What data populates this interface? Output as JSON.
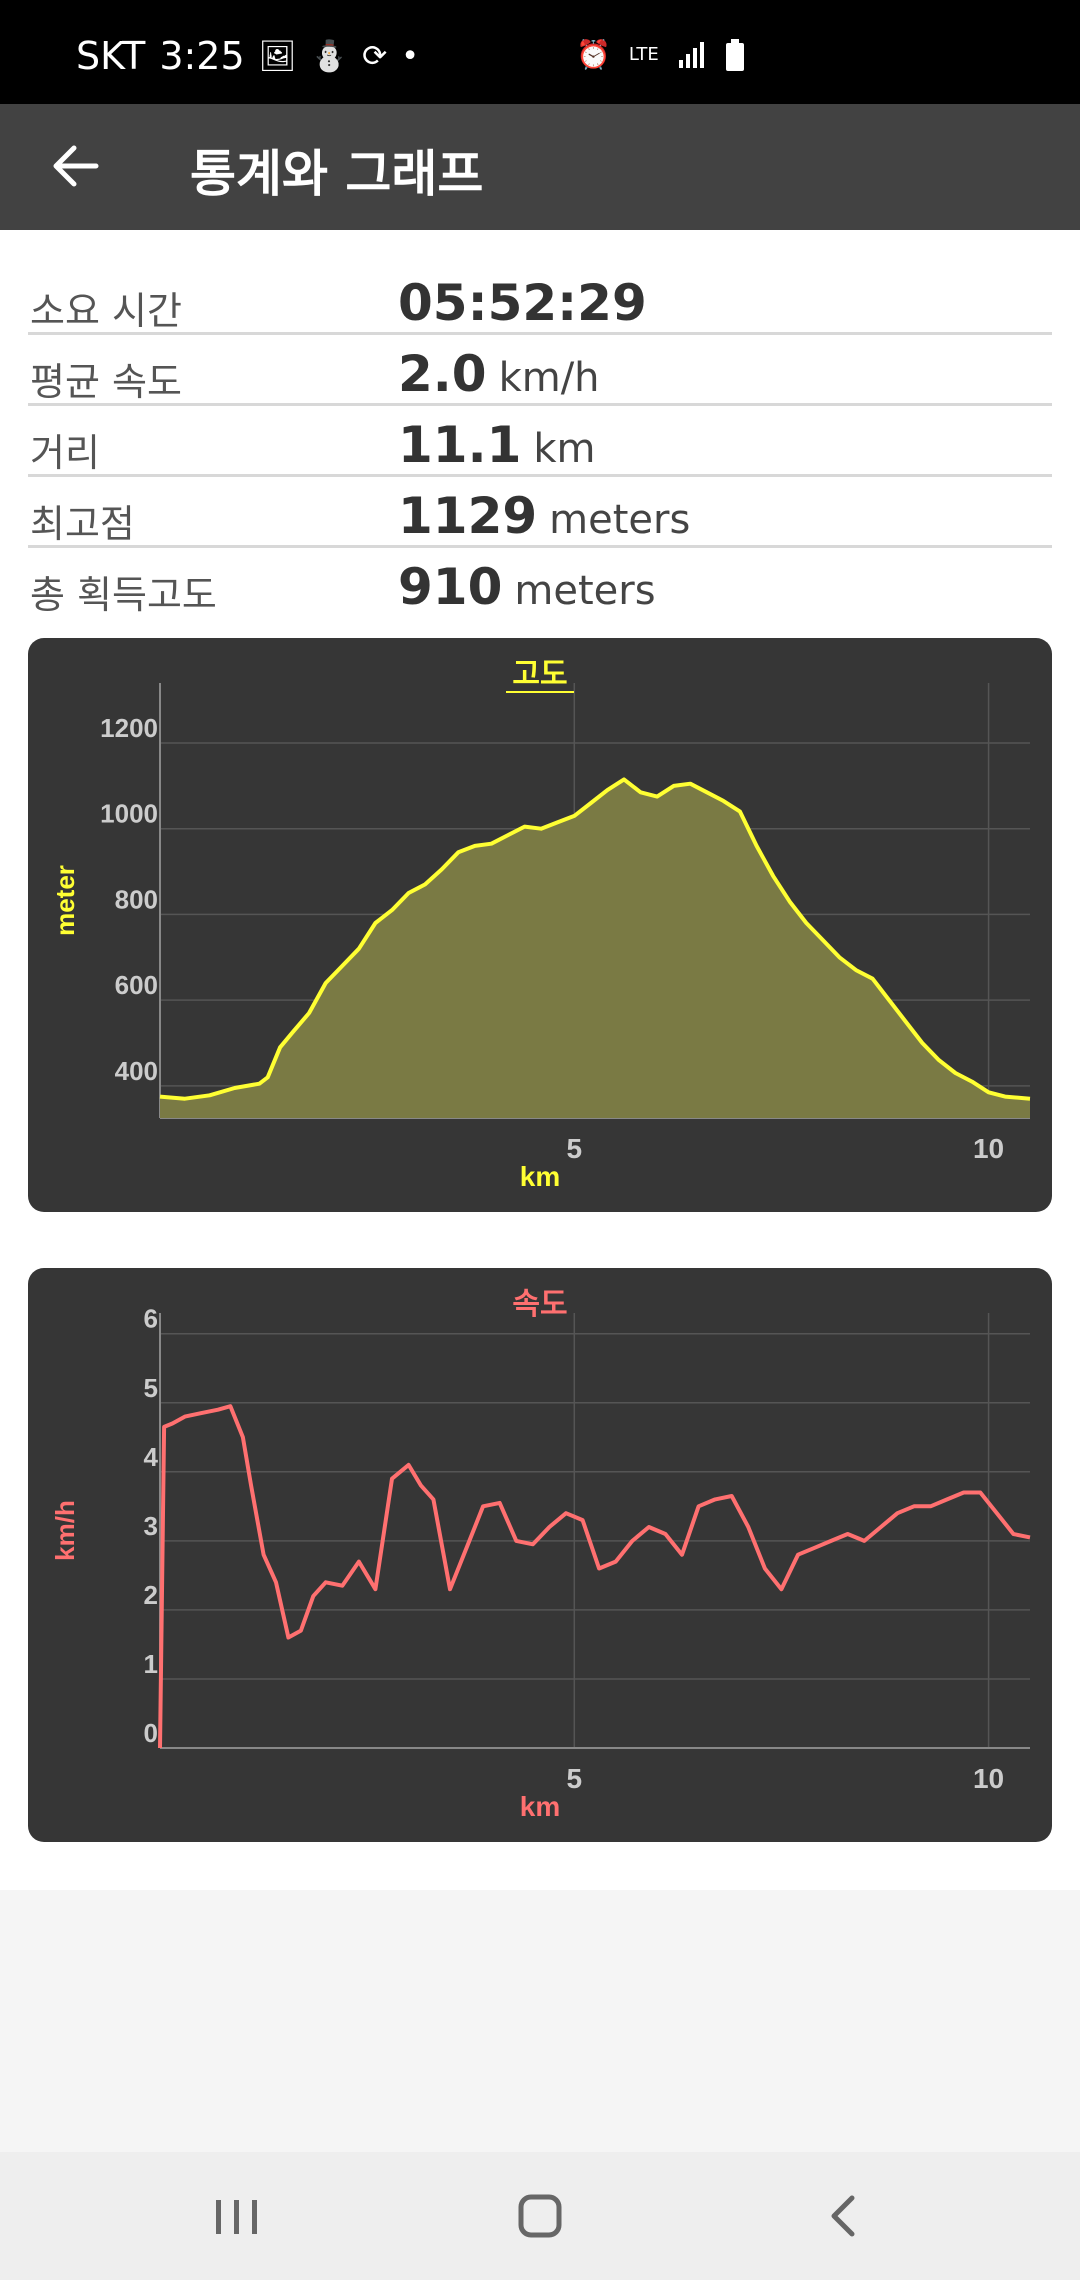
{
  "status_bar": {
    "carrier": "SKT",
    "time": "3:25",
    "network": "LTE",
    "left_icons": [
      "image-icon",
      "notification-icon",
      "sync-icon",
      "dot-icon"
    ],
    "right_icons": [
      "alarm-icon",
      "lte-icon",
      "signal-icon",
      "battery-icon"
    ]
  },
  "app_bar": {
    "title": "통계와 그래프",
    "back_icon": "arrow-left-icon"
  },
  "stats": [
    {
      "label": "소요 시간",
      "value": "05:52:29",
      "unit": ""
    },
    {
      "label": "평균 속도",
      "value": "2.0",
      "unit": "km/h"
    },
    {
      "label": "거리",
      "value": "11.1",
      "unit": "km"
    },
    {
      "label": "최고점",
      "value": "1129",
      "unit": "meters"
    },
    {
      "label": "총 획득고도",
      "value": "910",
      "unit": "meters"
    }
  ],
  "chart_data": [
    {
      "type": "area",
      "title": "고도",
      "xlabel": "km",
      "ylabel": "meter",
      "color": "#ffff33",
      "fill": "#7a7a44",
      "xlim": [
        0,
        10.5
      ],
      "ylim": [
        325,
        1340
      ],
      "xticks": [
        5,
        10
      ],
      "yticks": [
        400,
        600,
        800,
        1000,
        1200
      ],
      "grid": true,
      "x": [
        0,
        0.3,
        0.6,
        0.9,
        1.2,
        1.3,
        1.45,
        1.6,
        1.8,
        2.0,
        2.2,
        2.4,
        2.6,
        2.8,
        3.0,
        3.2,
        3.4,
        3.6,
        3.8,
        4.0,
        4.2,
        4.4,
        4.6,
        4.8,
        5.0,
        5.2,
        5.4,
        5.6,
        5.8,
        6.0,
        6.2,
        6.4,
        6.6,
        6.8,
        7.0,
        7.2,
        7.4,
        7.6,
        7.8,
        8.0,
        8.2,
        8.4,
        8.6,
        8.8,
        9.0,
        9.2,
        9.4,
        9.6,
        9.8,
        10.0,
        10.2,
        10.5
      ],
      "y": [
        375,
        370,
        378,
        395,
        405,
        420,
        490,
        525,
        570,
        640,
        680,
        720,
        780,
        810,
        850,
        870,
        905,
        945,
        960,
        965,
        985,
        1005,
        1000,
        1015,
        1030,
        1060,
        1090,
        1115,
        1085,
        1075,
        1100,
        1105,
        1085,
        1065,
        1040,
        960,
        890,
        830,
        780,
        740,
        700,
        670,
        650,
        600,
        550,
        500,
        460,
        430,
        410,
        385,
        375,
        370
      ]
    },
    {
      "type": "line",
      "title": "속도",
      "xlabel": "km",
      "ylabel": "km/h",
      "color": "#ff7070",
      "xlim": [
        0,
        10.5
      ],
      "ylim": [
        0,
        6.3
      ],
      "xticks": [
        5,
        10
      ],
      "yticks": [
        0,
        1,
        2,
        3,
        4,
        5,
        6
      ],
      "grid": true,
      "x": [
        0,
        0.05,
        0.15,
        0.3,
        0.5,
        0.7,
        0.85,
        1.0,
        1.1,
        1.25,
        1.4,
        1.55,
        1.7,
        1.85,
        2.0,
        2.2,
        2.4,
        2.6,
        2.8,
        3.0,
        3.15,
        3.3,
        3.5,
        3.7,
        3.9,
        4.1,
        4.3,
        4.5,
        4.7,
        4.9,
        5.1,
        5.3,
        5.5,
        5.7,
        5.9,
        6.1,
        6.3,
        6.5,
        6.7,
        6.9,
        7.1,
        7.3,
        7.5,
        7.7,
        7.9,
        8.1,
        8.3,
        8.5,
        8.7,
        8.9,
        9.1,
        9.3,
        9.5,
        9.7,
        9.9,
        10.1,
        10.3,
        10.5
      ],
      "y": [
        0,
        4.65,
        4.7,
        4.8,
        4.85,
        4.9,
        4.95,
        4.5,
        3.8,
        2.8,
        2.4,
        1.6,
        1.7,
        2.2,
        2.4,
        2.35,
        2.7,
        2.3,
        3.9,
        4.1,
        3.8,
        3.6,
        2.3,
        2.9,
        3.5,
        3.55,
        3.0,
        2.95,
        3.2,
        3.4,
        3.3,
        2.6,
        2.7,
        3.0,
        3.2,
        3.1,
        2.8,
        3.5,
        3.6,
        3.65,
        3.2,
        2.6,
        2.3,
        2.8,
        2.9,
        3.0,
        3.1,
        3.0,
        3.2,
        3.4,
        3.5,
        3.5,
        3.6,
        3.7,
        3.7,
        3.4,
        3.1,
        3.05
      ]
    }
  ],
  "nav_bar": [
    "recent-apps-icon",
    "home-icon",
    "back-icon"
  ]
}
